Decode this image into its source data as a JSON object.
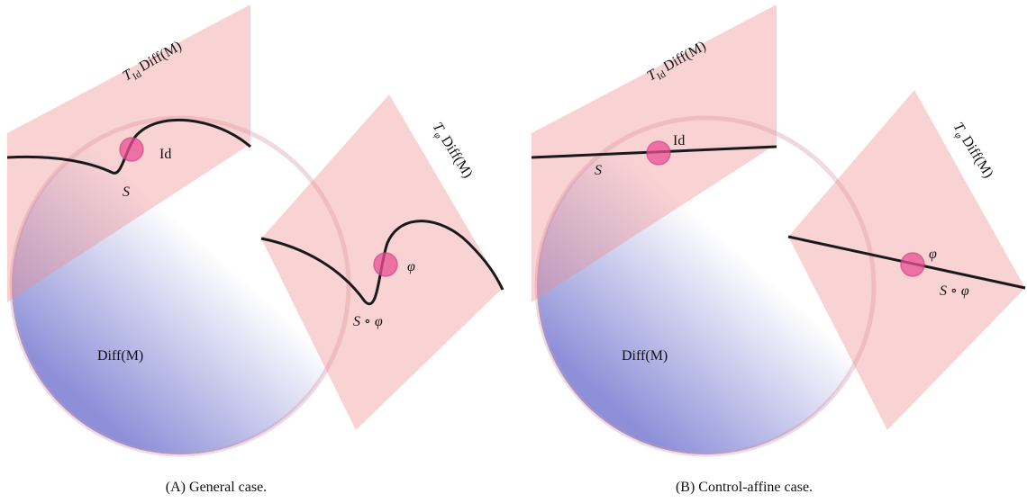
{
  "panels": [
    {
      "caption": {
        "tag": "(A)",
        "text": "General case."
      },
      "manifold": "Diff(M)",
      "tangent_id": {
        "symbol": "T",
        "subscript": "Id",
        "space": "Diff(M)"
      },
      "tangent_phi": {
        "symbol": "T",
        "subscript": "φ",
        "space": "Diff(M)"
      },
      "point_id": "Id",
      "point_phi": "φ",
      "curve_id": "S",
      "curve_phi": "S ∘ φ"
    },
    {
      "caption": {
        "tag": "(B)",
        "text": "Control-affine case."
      },
      "manifold": "Diff(M)",
      "tangent_id": {
        "symbol": "T",
        "subscript": "Id",
        "space": "Diff(M)"
      },
      "tangent_phi": {
        "symbol": "T",
        "subscript": "φ",
        "space": "Diff(M)"
      },
      "point_id": "Id",
      "point_phi": "φ",
      "curve_id": "S",
      "curve_phi": "S ∘ φ"
    }
  ]
}
